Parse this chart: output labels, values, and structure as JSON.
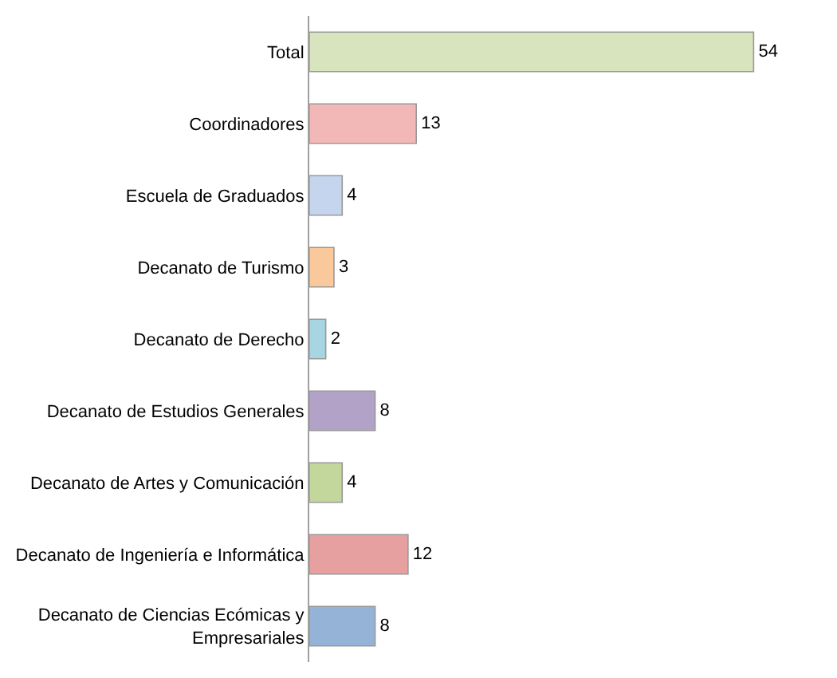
{
  "chart_data": {
    "type": "bar",
    "orientation": "horizontal",
    "data_labels": true,
    "legend": false,
    "categories": [
      "Total",
      "Coordinadores",
      "Escuela de Graduados",
      "Decanato de Turismo",
      "Decanato de Derecho",
      "Decanato de Estudios Generales",
      "Decanato de Artes y Comunicación",
      "Decanato de Ingeniería e Informática",
      "Decanato de Ciencias Ecómicas y Empresariales"
    ],
    "values": [
      54,
      13,
      4,
      3,
      2,
      8,
      4,
      12,
      8
    ],
    "colors": [
      "#d7e4bd",
      "#f2b8b8",
      "#c6d5ee",
      "#f9c89b",
      "#a8d5e2",
      "#b3a2c7",
      "#c3d69b",
      "#e6a0a0",
      "#95b3d7"
    ]
  }
}
